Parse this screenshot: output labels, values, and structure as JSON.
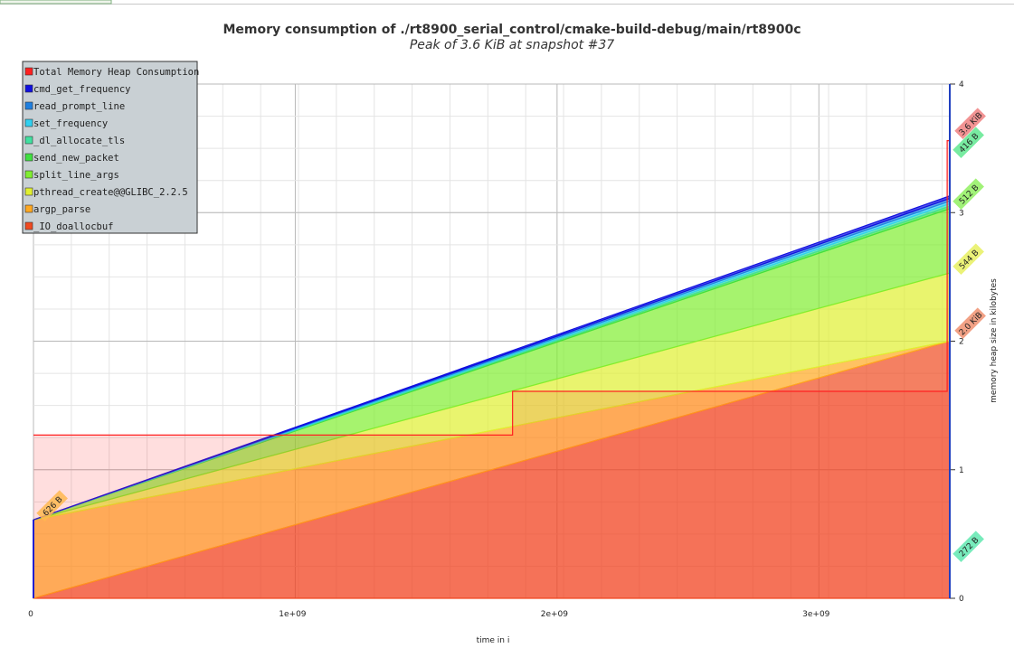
{
  "chart_data": {
    "type": "stacked-area",
    "title": "Memory consumption of ./rt8900_serial_control/cmake-build-debug/main/rt8900c",
    "subtitle": "Peak of 3.6 KiB at snapshot #37",
    "x_label": "time in i",
    "y_label": "memory heap size in kilobytes",
    "xlim": [
      0,
      3500000000
    ],
    "xticks": [
      0,
      {
        "value": 1000000000,
        "label": "1e+09"
      },
      {
        "value": 2000000000,
        "label": "2e+09"
      },
      {
        "value": 3000000000,
        "label": "3e+09"
      }
    ],
    "ylim": [
      0,
      4
    ],
    "yticks": [
      0,
      1,
      2,
      3,
      4
    ],
    "grid": true,
    "legend": "top-left",
    "total": {
      "name": "Total Memory Heap Consumption",
      "color": "#ff2020",
      "x": [
        0,
        1830000000,
        3490000000
      ],
      "values": [
        1.27,
        1.61,
        3.56
      ]
    },
    "x": [
      0,
      3500000000
    ],
    "series": [
      {
        "name": "cmd_get_frequency",
        "color": "#1010e0",
        "values": [
          0,
          0.02
        ]
      },
      {
        "name": "read_prompt_line",
        "color": "#2080e0",
        "values": [
          0,
          0.02
        ]
      },
      {
        "name": "set_frequency",
        "color": "#30d0f0",
        "values": [
          0,
          0.02
        ]
      },
      {
        "name": "_dl_allocate_tls",
        "color": "#40e0a0",
        "values": [
          0,
          0.02
        ]
      },
      {
        "name": "send_new_packet",
        "color": "#40e040",
        "values": [
          0,
          0.02
        ]
      },
      {
        "name": "split_line_args",
        "color": "#80ee30",
        "values": [
          0,
          0.5
        ]
      },
      {
        "name": "pthread_create@@GLIBC_2.2.5",
        "color": "#e0f030",
        "values": [
          0,
          0.53
        ]
      },
      {
        "name": "argp_parse",
        "color": "#ffa820",
        "values": [
          0.61,
          0
        ]
      },
      {
        "name": "_IO_doallocbuf",
        "color": "#f04a20",
        "values": [
          0,
          2.0
        ]
      }
    ],
    "annotations": [
      {
        "text": "3.6 KiB",
        "color": "#f08080"
      },
      {
        "text": "416 B",
        "color": "#60e890"
      },
      {
        "text": "512 B",
        "color": "#90f060"
      },
      {
        "text": "544 B",
        "color": "#e8f060"
      },
      {
        "text": "2.0 KiB",
        "color": "#f09070"
      },
      {
        "text": "272 B",
        "color": "#60e8b0"
      },
      {
        "text": "626 B",
        "color": "#ffb850"
      }
    ]
  }
}
